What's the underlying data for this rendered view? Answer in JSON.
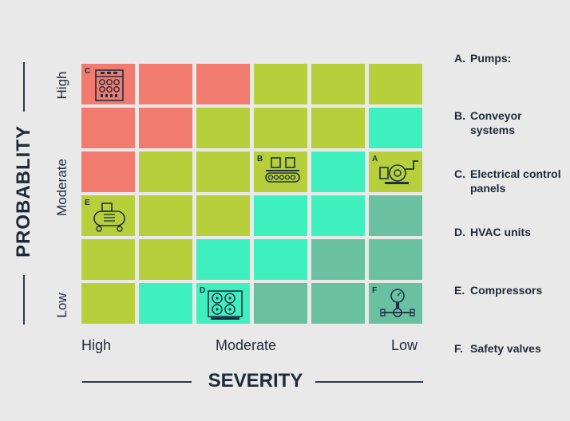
{
  "axes": {
    "y_title": "PROBABLITY",
    "x_title": "SEVERITY",
    "y_ticks": {
      "high": "High",
      "moderate": "Moderate",
      "low": "Low"
    },
    "x_ticks": {
      "high": "High",
      "moderate": "Moderate",
      "low": "Low"
    }
  },
  "colors": {
    "red": "#f07b6e",
    "yellow": "#b6cf3a",
    "teal": "#3ff0bf",
    "green": "#69c1a2",
    "icon": "#1f3041"
  },
  "grid": [
    [
      "red",
      "red",
      "red",
      "yellow",
      "yellow",
      "yellow"
    ],
    [
      "red",
      "red",
      "yellow",
      "yellow",
      "yellow",
      "teal"
    ],
    [
      "red",
      "yellow",
      "yellow",
      "yellow",
      "teal",
      "yellow"
    ],
    [
      "yellow",
      "yellow",
      "yellow",
      "teal",
      "teal",
      "green"
    ],
    [
      "yellow",
      "yellow",
      "teal",
      "teal",
      "green",
      "green"
    ],
    [
      "yellow",
      "teal",
      "teal",
      "green",
      "green",
      "green"
    ]
  ],
  "markers": [
    {
      "letter": "C",
      "row": 0,
      "col": 0,
      "icon": "control-panel-icon"
    },
    {
      "letter": "B",
      "row": 2,
      "col": 3,
      "icon": "conveyor-icon"
    },
    {
      "letter": "A",
      "row": 2,
      "col": 5,
      "icon": "pump-icon"
    },
    {
      "letter": "E",
      "row": 3,
      "col": 0,
      "icon": "compressor-icon"
    },
    {
      "letter": "D",
      "row": 5,
      "col": 2,
      "icon": "hvac-icon"
    },
    {
      "letter": "F",
      "row": 5,
      "col": 5,
      "icon": "safety-valve-icon"
    }
  ],
  "legend": [
    {
      "letter": "A.",
      "label": "Pumps:"
    },
    {
      "letter": "B.",
      "label": "Conveyor systems"
    },
    {
      "letter": "C.",
      "label": "Electrical control panels"
    },
    {
      "letter": "D.",
      "label": "HVAC units"
    },
    {
      "letter": "E.",
      "label": "Compressors"
    },
    {
      "letter": "F.",
      "label": "Safety valves"
    }
  ]
}
